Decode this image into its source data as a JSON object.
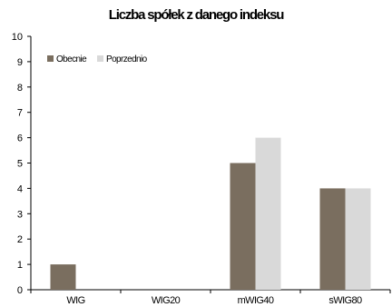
{
  "chart_data": {
    "type": "bar",
    "title": "Liczba spółek z danego indeksu",
    "categories": [
      "WIG",
      "WIG20",
      "mWIG40",
      "sWIG80"
    ],
    "series": [
      {
        "name": "Obecnie",
        "values": [
          1,
          0,
          5,
          4
        ],
        "color": "#7a6e5f"
      },
      {
        "name": "Poprzednio",
        "values": [
          0,
          0,
          6,
          4
        ],
        "color": "#d9d9d9"
      }
    ],
    "ylim": [
      0,
      10
    ],
    "yticks": [
      0,
      1,
      2,
      3,
      4,
      5,
      6,
      7,
      8,
      9,
      10
    ],
    "grid": false,
    "legend_position": "top-left"
  }
}
